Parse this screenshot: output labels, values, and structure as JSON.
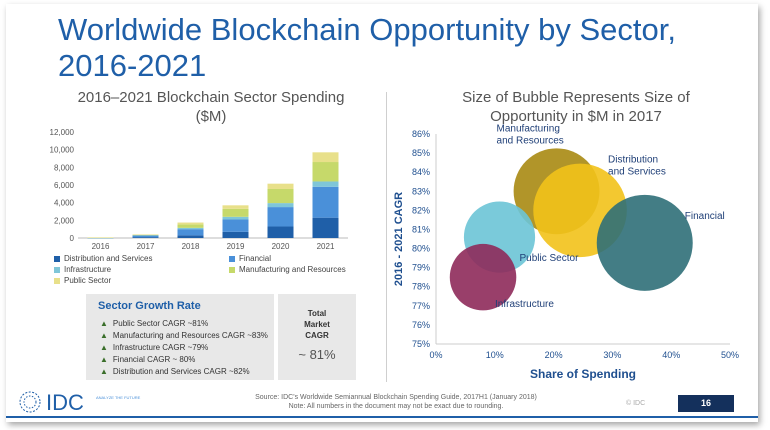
{
  "title": "Worldwide Blockchain Opportunity by Sector, 2016-2021",
  "colors": {
    "title": "#1f5fa8",
    "distribution": "#1f5fa8",
    "financial": "#4a90d9",
    "infrastructure": "#7fc6d8",
    "manufacturing": "#c6d96a",
    "public": "#e8e08a",
    "bubble_manufacturing": "#a88a12",
    "bubble_distribution": "#f2c21a",
    "bubble_financial": "#2f6f78",
    "bubble_public": "#6cc4d6",
    "bubble_infrastructure": "#8e2a5a"
  },
  "chart_data": [
    {
      "type": "bar",
      "stacked": true,
      "title": "2016–2021 Blockchain Sector Spending ($M)",
      "categories": [
        "2016",
        "2017",
        "2018",
        "2019",
        "2020",
        "2021"
      ],
      "ylim": [
        0,
        12000
      ],
      "yticks": [
        "0",
        "2,000",
        "4,000",
        "6,000",
        "8,000",
        "10,000",
        "12,000"
      ],
      "series": [
        {
          "name": "Distribution and Services",
          "values": [
            20,
            100,
            300,
            700,
            1300,
            2300
          ]
        },
        {
          "name": "Financial",
          "values": [
            25,
            200,
            700,
            1400,
            2200,
            3500
          ]
        },
        {
          "name": "Infrastructure",
          "values": [
            5,
            30,
            150,
            300,
            450,
            600
          ]
        },
        {
          "name": "Manufacturing and Resources",
          "values": [
            10,
            50,
            400,
            900,
            1600,
            2200
          ]
        },
        {
          "name": "Public Sector",
          "values": [
            5,
            20,
            200,
            400,
            600,
            1100
          ]
        }
      ],
      "legend": "bottom"
    },
    {
      "type": "scatter",
      "title": "Size of Bubble Represents Size of Opportunity in $M in 2017",
      "xlabel": "Share of Spending",
      "ylabel": "2016 - 2021 CAGR",
      "xlim": [
        0,
        0.5
      ],
      "ylim": [
        0.75,
        0.86
      ],
      "xticks": [
        "0%",
        "10%",
        "20%",
        "30%",
        "40%",
        "50%"
      ],
      "yticks": [
        "75%",
        "76%",
        "77%",
        "78%",
        "79%",
        "80%",
        "81%",
        "82%",
        "83%",
        "84%",
        "85%",
        "86%"
      ],
      "points": [
        {
          "label": "Manufacturing and Resources",
          "x": 0.205,
          "y": 0.83,
          "size": 0.8
        },
        {
          "label": "Distribution and Services",
          "x": 0.245,
          "y": 0.82,
          "size": 0.95
        },
        {
          "label": "Financial",
          "x": 0.355,
          "y": 0.803,
          "size": 1.0
        },
        {
          "label": "Public Sector",
          "x": 0.108,
          "y": 0.806,
          "size": 0.55
        },
        {
          "label": "Infrastructure",
          "x": 0.08,
          "y": 0.785,
          "size": 0.48
        }
      ]
    }
  ],
  "growth": {
    "heading": "Sector Growth Rate",
    "items": [
      "Public Sector CAGR ~81%",
      "Manufacturing and Resources CAGR ~83%",
      "Infrastructure CAGR ~79%",
      "Financial CAGR ~ 80%",
      "Distribution and Services CAGR ~82%"
    ]
  },
  "total_cagr": {
    "label": "Total Market CAGR",
    "value": "~ 81%"
  },
  "footer": {
    "logo_text": "IDC",
    "logo_tag": "ANALYZE THE FUTURE",
    "source": "Source: IDC's Worldwide Semiannual Blockchain Spending Guide, 2017H1 (January 2018)",
    "note": "Note: All numbers in the document may not be exact due to rounding.",
    "copyright": "© IDC",
    "page": "16"
  }
}
